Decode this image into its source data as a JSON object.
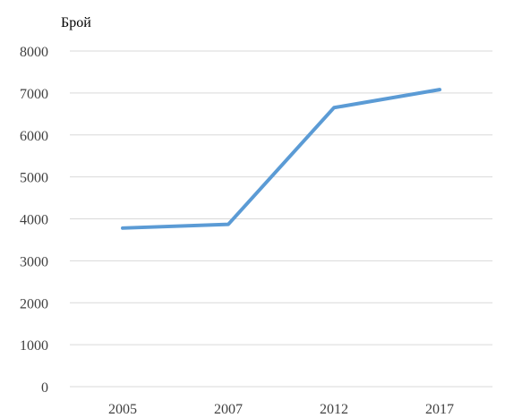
{
  "chart_data": {
    "type": "line",
    "title": "",
    "xlabel": "",
    "ylabel": "Брой",
    "categories": [
      "2005",
      "2007",
      "2012",
      "2017"
    ],
    "series": [
      {
        "values": [
          3780,
          3870,
          6650,
          7080
        ]
      }
    ],
    "ylim": [
      0,
      8000
    ],
    "yticks": [
      "0",
      "1000",
      "2000",
      "3000",
      "4000",
      "5000",
      "6000",
      "7000",
      "8000"
    ],
    "grid": true,
    "legend": "none",
    "colors": {
      "line": "#5b9bd5",
      "grid": "#d9d9d9"
    }
  }
}
